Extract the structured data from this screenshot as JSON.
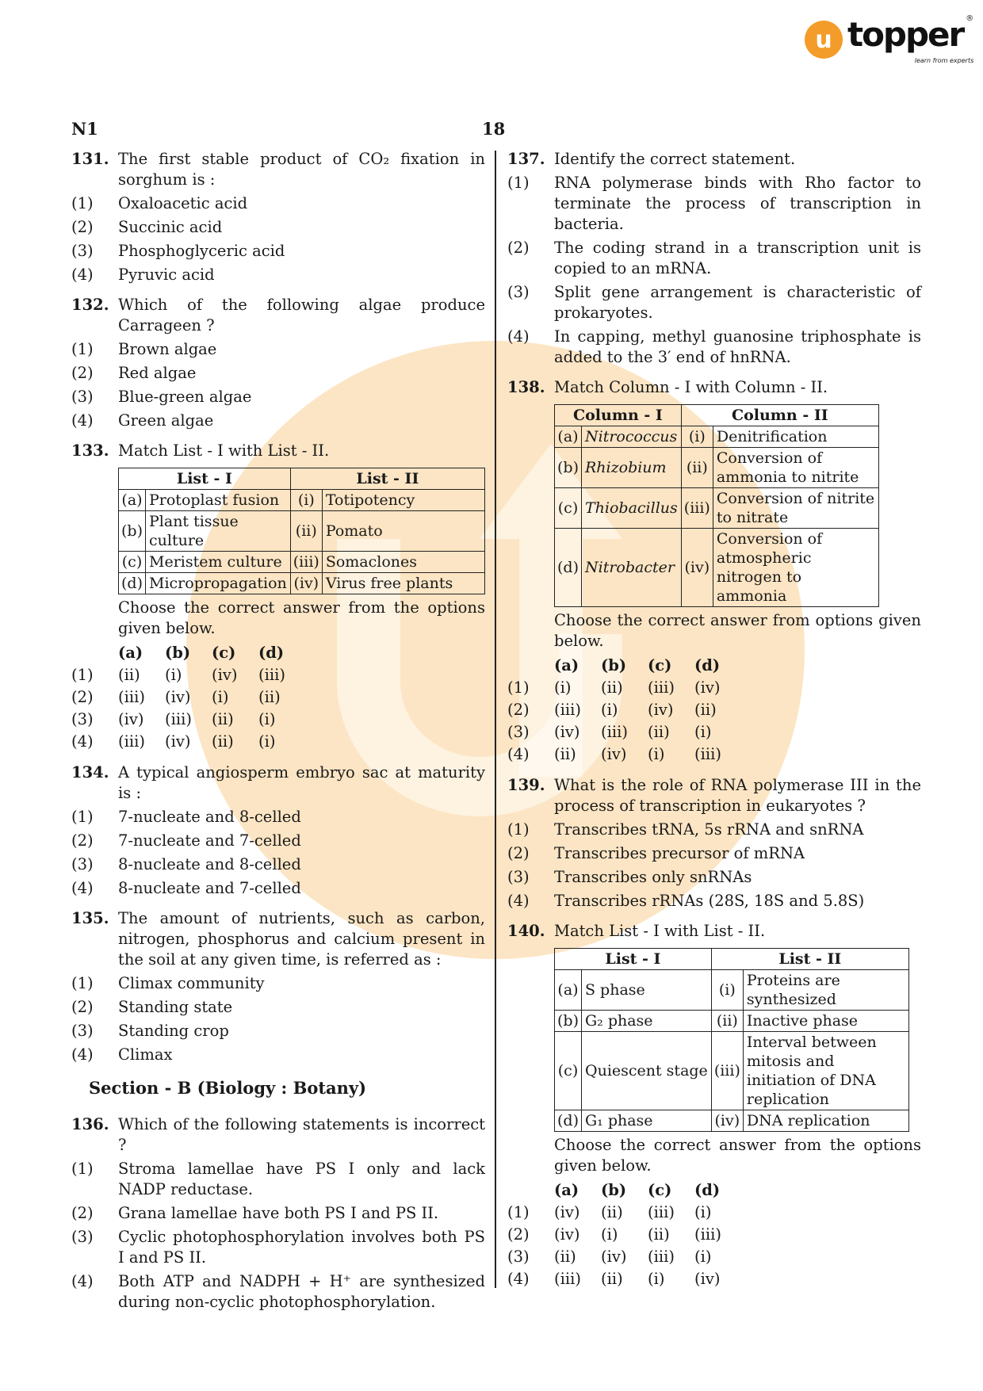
{
  "logo": {
    "mark": "u",
    "name": "topper",
    "tagline": "learn from experts",
    "reg": "®",
    "color": "#f39c29"
  },
  "header": {
    "code": "N1",
    "page": "18"
  },
  "watermark_color": "#f7b04c",
  "left": [
    {
      "num": "131.",
      "text": "The first stable product of CO₂ fixation in sorghum is :",
      "options": [
        "Oxaloacetic acid",
        "Succinic acid",
        "Phosphoglyceric acid",
        "Pyruvic acid"
      ]
    },
    {
      "num": "132.",
      "text": "Which of the following algae produce Carrageen ?",
      "options": [
        "Brown algae",
        "Red algae",
        "Blue-green algae",
        "Green algae"
      ]
    },
    {
      "num": "133.",
      "text": "Match List - I with List - II.",
      "table": {
        "headers": [
          "List - I",
          "List - II"
        ],
        "rows": [
          [
            "(a)",
            "Protoplast fusion",
            "(i)",
            "Totipotency"
          ],
          [
            "(b)",
            "Plant tissue culture",
            "(ii)",
            "Pomato"
          ],
          [
            "(c)",
            "Meristem culture",
            "(iii)",
            "Somaclones"
          ],
          [
            "(d)",
            "Micropropagation",
            "(iv)",
            "Virus free plants"
          ]
        ]
      },
      "after": "Choose the correct answer from the options given below.",
      "answers": {
        "head": [
          "(a)",
          "(b)",
          "(c)",
          "(d)"
        ],
        "rows": [
          [
            "(1)",
            "(ii)",
            "(i)",
            "(iv)",
            "(iii)"
          ],
          [
            "(2)",
            "(iii)",
            "(iv)",
            "(i)",
            "(ii)"
          ],
          [
            "(3)",
            "(iv)",
            "(iii)",
            "(ii)",
            "(i)"
          ],
          [
            "(4)",
            "(iii)",
            "(iv)",
            "(ii)",
            "(i)"
          ]
        ]
      }
    },
    {
      "num": "134.",
      "text": "A typical angiosperm embryo sac at maturity is :",
      "options": [
        "7-nucleate and 8-celled",
        "7-nucleate and 7-celled",
        "8-nucleate and 8-celled",
        "8-nucleate and 7-celled"
      ]
    },
    {
      "num": "135.",
      "text": "The amount of nutrients, such as carbon, nitrogen, phosphorus and calcium present in the soil at any given time, is referred as :",
      "options": [
        "Climax community",
        "Standing state",
        "Standing crop",
        "Climax"
      ]
    },
    {
      "section": "Section - B (Biology : Botany)"
    },
    {
      "num": "136.",
      "text": "Which of the following statements is incorrect ?",
      "options": [
        "Stroma lamellae have PS I only and lack NADP reductase.",
        "Grana lamellae have both PS I and PS II.",
        "Cyclic photophosphorylation involves both PS I and PS II.",
        "Both ATP and NADPH + H⁺ are synthesized during non-cyclic photophosphorylation."
      ]
    }
  ],
  "right": [
    {
      "num": "137.",
      "text": "Identify the correct statement.",
      "options": [
        "RNA polymerase binds with Rho factor to terminate the process of transcription in bacteria.",
        "The coding strand in a transcription unit is copied to an mRNA.",
        "Split gene arrangement is characteristic of prokaryotes.",
        "In capping, methyl guanosine triphosphate is added to the 3′ end of hnRNA."
      ]
    },
    {
      "num": "138.",
      "text": "Match Column - I with Column - II.",
      "table": {
        "italic": true,
        "headers": [
          "Column - I",
          "Column - II"
        ],
        "rows": [
          [
            "(a)",
            "Nitrococcus",
            "(i)",
            "Denitrification"
          ],
          [
            "(b)",
            "Rhizobium",
            "(ii)",
            "Conversion of ammonia to nitrite"
          ],
          [
            "(c)",
            "Thiobacillus",
            "(iii)",
            "Conversion of nitrite to nitrate"
          ],
          [
            "(d)",
            "Nitrobacter",
            "(iv)",
            "Conversion of atmospheric nitrogen to ammonia"
          ]
        ]
      },
      "after": "Choose the correct answer from options given below.",
      "answers": {
        "head": [
          "(a)",
          "(b)",
          "(c)",
          "(d)"
        ],
        "rows": [
          [
            "(1)",
            "(i)",
            "(ii)",
            "(iii)",
            "(iv)"
          ],
          [
            "(2)",
            "(iii)",
            "(i)",
            "(iv)",
            "(ii)"
          ],
          [
            "(3)",
            "(iv)",
            "(iii)",
            "(ii)",
            "(i)"
          ],
          [
            "(4)",
            "(ii)",
            "(iv)",
            "(i)",
            "(iii)"
          ]
        ]
      }
    },
    {
      "num": "139.",
      "text": "What is the role of RNA polymerase III in the process of transcription in eukaryotes ?",
      "options": [
        "Transcribes tRNA, 5s rRNA and snRNA",
        "Transcribes precursor of mRNA",
        "Transcribes only snRNAs",
        "Transcribes rRNAs (28S, 18S and 5.8S)"
      ]
    },
    {
      "num": "140.",
      "text": "Match List - I with List - II.",
      "table": {
        "headers": [
          "List - I",
          "List - II"
        ],
        "rows": [
          [
            "(a)",
            "S phase",
            "(i)",
            "Proteins are synthesized"
          ],
          [
            "(b)",
            "G₂ phase",
            "(ii)",
            "Inactive phase"
          ],
          [
            "(c)",
            "Quiescent stage",
            "(iii)",
            "Interval between mitosis and initiation of DNA replication"
          ],
          [
            "(d)",
            "G₁ phase",
            "(iv)",
            "DNA replication"
          ]
        ]
      },
      "after": "Choose the correct answer from the options given below.",
      "answers": {
        "head": [
          "(a)",
          "(b)",
          "(c)",
          "(d)"
        ],
        "rows": [
          [
            "(1)",
            "(iv)",
            "(ii)",
            "(iii)",
            "(i)"
          ],
          [
            "(2)",
            "(iv)",
            "(i)",
            "(ii)",
            "(iii)"
          ],
          [
            "(3)",
            "(ii)",
            "(iv)",
            "(iii)",
            "(i)"
          ],
          [
            "(4)",
            "(iii)",
            "(ii)",
            "(i)",
            "(iv)"
          ]
        ]
      }
    }
  ]
}
